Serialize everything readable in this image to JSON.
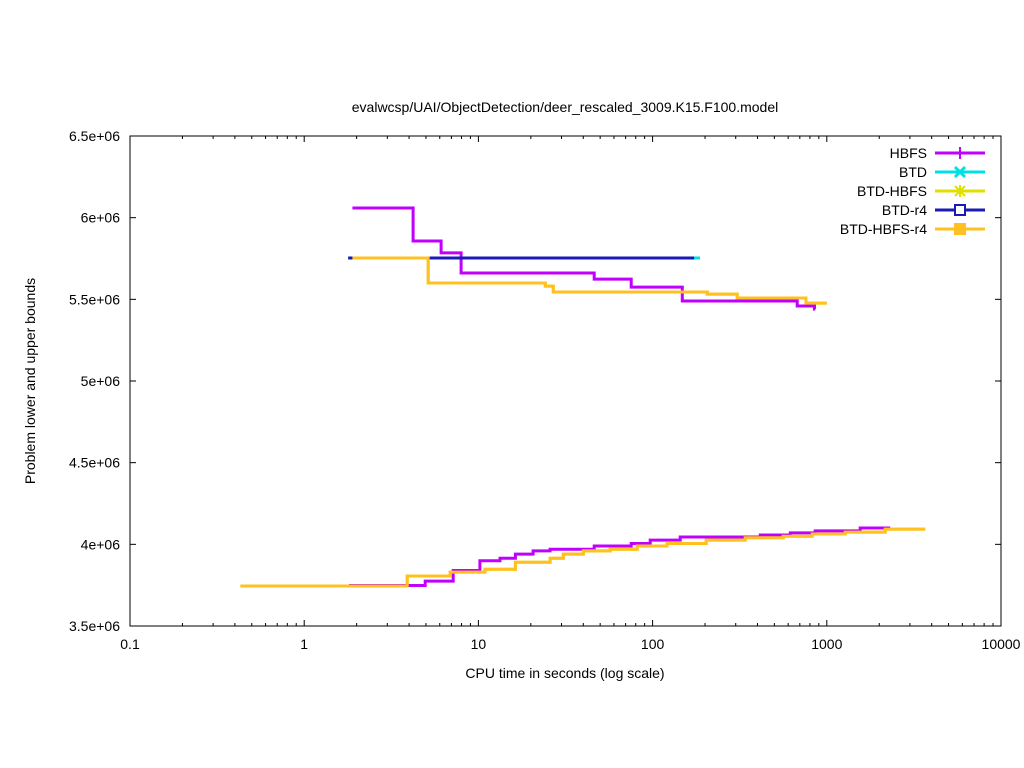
{
  "chart_data": {
    "type": "line",
    "title": "evalwcsp/UAI/ObjectDetection/deer_rescaled_3009.K15.F100.model",
    "xlabel": "CPU time in seconds (log scale)",
    "ylabel": "Problem lower and upper bounds",
    "xscale": "log",
    "xlim": [
      0.1,
      10000
    ],
    "ylim": [
      3500000,
      6500000
    ],
    "xticks": [
      {
        "v": 0.1,
        "label": "0.1"
      },
      {
        "v": 1,
        "label": "1"
      },
      {
        "v": 10,
        "label": "10"
      },
      {
        "v": 100,
        "label": "100"
      },
      {
        "v": 1000,
        "label": "1000"
      },
      {
        "v": 10000,
        "label": "10000"
      }
    ],
    "yticks": [
      {
        "v": 3500000,
        "label": "3.5e+06"
      },
      {
        "v": 4000000,
        "label": "4e+06"
      },
      {
        "v": 4500000,
        "label": "4.5e+06"
      },
      {
        "v": 5000000,
        "label": "5e+06"
      },
      {
        "v": 5500000,
        "label": "5.5e+06"
      },
      {
        "v": 6000000,
        "label": "6e+06"
      },
      {
        "v": 6500000,
        "label": "6.5e+06"
      }
    ],
    "legend_position": "top-right",
    "series": [
      {
        "name": "HBFS",
        "color": "#c000ff",
        "marker": "plus",
        "upper": [
          [
            1.89,
            6059000
          ],
          [
            4.22,
            5857000
          ],
          [
            6.11,
            5784000
          ],
          [
            7.96,
            5661000
          ],
          [
            46.2,
            5624000
          ],
          [
            75.4,
            5575000
          ],
          [
            148,
            5490000
          ],
          [
            676,
            5459000
          ],
          [
            850,
            5440000
          ],
          [
            858,
            5440000
          ]
        ],
        "lower": [
          [
            1.81,
            3748000
          ],
          [
            4.95,
            3775000
          ],
          [
            7.17,
            3840000
          ],
          [
            10.2,
            3900000
          ],
          [
            13.3,
            3915000
          ],
          [
            16.3,
            3940000
          ],
          [
            20.6,
            3960000
          ],
          [
            25.8,
            3970000
          ],
          [
            46.2,
            3990000
          ],
          [
            75.4,
            4005000
          ],
          [
            96.9,
            4026000
          ],
          [
            144,
            4045000
          ],
          [
            415,
            4057000
          ],
          [
            617,
            4070000
          ],
          [
            858,
            4082000
          ],
          [
            1556,
            4100000
          ],
          [
            2312,
            4100000
          ]
        ]
      },
      {
        "name": "BTD",
        "color": "#00e0e0",
        "marker": "cross",
        "upper": [
          [
            1.79,
            5753000
          ],
          [
            187,
            5753000
          ]
        ],
        "lower": []
      },
      {
        "name": "BTD-HBFS",
        "color": "#e0e000",
        "marker": "star",
        "upper": [
          [
            1.89,
            5753000
          ],
          [
            5.15,
            5600000
          ],
          [
            24.2,
            5581000
          ],
          [
            26.9,
            5545000
          ],
          [
            206,
            5532000
          ],
          [
            306,
            5508000
          ],
          [
            760,
            5477000
          ],
          [
            1000,
            5477000
          ]
        ],
        "lower": [
          [
            0.43,
            3745000
          ],
          [
            3.9,
            3806000
          ],
          [
            6.89,
            3830000
          ],
          [
            10.9,
            3848000
          ],
          [
            16.3,
            3890000
          ],
          [
            25.8,
            3915000
          ],
          [
            30.7,
            3940000
          ],
          [
            40.0,
            3960000
          ],
          [
            57.1,
            3970000
          ],
          [
            81.6,
            3990000
          ],
          [
            121,
            4005000
          ],
          [
            203,
            4026000
          ],
          [
            340,
            4040000
          ],
          [
            562,
            4050000
          ],
          [
            825,
            4063000
          ],
          [
            1276,
            4075000
          ],
          [
            2163,
            4093000
          ],
          [
            3673,
            4093000
          ]
        ]
      },
      {
        "name": "BTD-r4",
        "color": "#1a1ab4",
        "marker": "open-square",
        "upper": [
          [
            1.79,
            5753000
          ],
          [
            173,
            5753000
          ]
        ],
        "lower": []
      },
      {
        "name": "BTD-HBFS-r4",
        "color": "#ffc020",
        "marker": "filled-square",
        "upper": [
          [
            1.89,
            5753000
          ],
          [
            5.15,
            5600000
          ],
          [
            24.2,
            5581000
          ],
          [
            26.9,
            5545000
          ],
          [
            206,
            5532000
          ],
          [
            306,
            5508000
          ],
          [
            760,
            5477000
          ],
          [
            1000,
            5477000
          ]
        ],
        "lower": [
          [
            0.43,
            3745000
          ],
          [
            3.9,
            3806000
          ],
          [
            6.89,
            3830000
          ],
          [
            10.9,
            3848000
          ],
          [
            16.3,
            3890000
          ],
          [
            25.8,
            3915000
          ],
          [
            30.7,
            3940000
          ],
          [
            40.0,
            3960000
          ],
          [
            57.1,
            3970000
          ],
          [
            81.6,
            3990000
          ],
          [
            121,
            4005000
          ],
          [
            203,
            4026000
          ],
          [
            340,
            4040000
          ],
          [
            562,
            4050000
          ],
          [
            825,
            4063000
          ],
          [
            1276,
            4075000
          ],
          [
            2163,
            4093000
          ],
          [
            3673,
            4093000
          ]
        ]
      }
    ]
  }
}
